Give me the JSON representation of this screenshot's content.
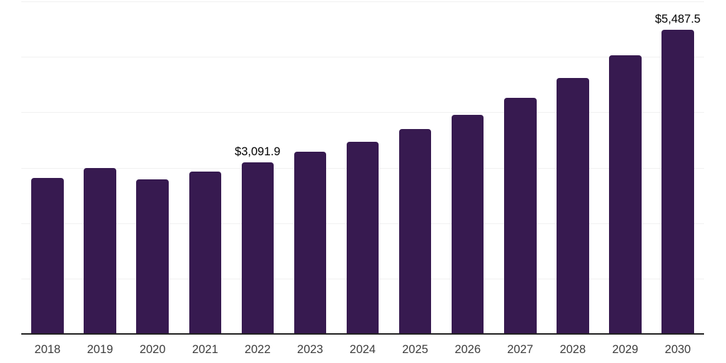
{
  "chart_data": {
    "type": "bar",
    "title": "",
    "xlabel": "",
    "ylabel": "",
    "categories": [
      "2018",
      "2019",
      "2020",
      "2021",
      "2022",
      "2023",
      "2024",
      "2025",
      "2026",
      "2027",
      "2028",
      "2029",
      "2030"
    ],
    "values": [
      2815,
      2995,
      2790,
      2935,
      3091.9,
      3285,
      3465,
      3695,
      3960,
      4265,
      4620,
      5025,
      5487.5
    ],
    "data_labels": [
      "",
      "",
      "",
      "",
      "$3,091.9",
      "",
      "",
      "",
      "",
      "",
      "",
      "",
      "$5,487.5"
    ],
    "ylim": [
      0,
      6000
    ],
    "grid_interval": 1000,
    "grid": "horizontal",
    "y_axis_tick_labels_visible": false,
    "legend": "none"
  },
  "colors": {
    "bar": "#371a50",
    "gridline": "#f1f1f1",
    "axis_line": "#222222",
    "value_label_text": "#000000",
    "tick_label_text": "#3d3d3d",
    "background": "#ffffff"
  },
  "layout_values": {
    "note": "only values visible as pixels are data; geometry below is layout"
  }
}
